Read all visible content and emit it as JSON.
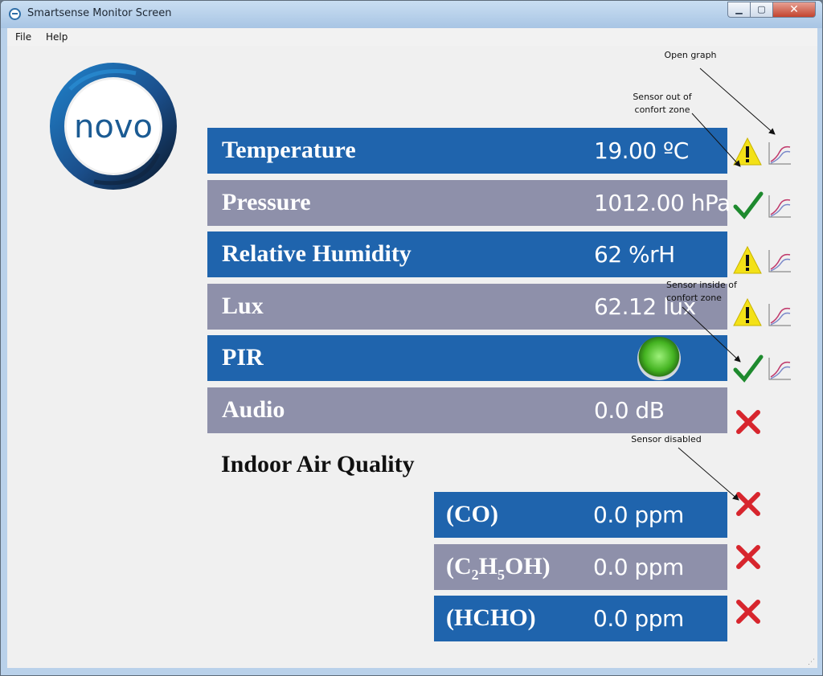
{
  "window": {
    "title": "Smartsense Monitor Screen"
  },
  "menu": {
    "file": "File",
    "help": "Help"
  },
  "logo": {
    "text": "novo"
  },
  "sensors": [
    {
      "label": "Temperature",
      "value": "19.00 ºC",
      "status": "warning"
    },
    {
      "label": "Pressure",
      "value": "1012.00 hPa",
      "status": "ok"
    },
    {
      "label": "Relative Humidity",
      "value": "62 %rH",
      "status": "warning"
    },
    {
      "label": "Lux",
      "value": "62.12 lux",
      "status": "warning"
    },
    {
      "label": "PIR",
      "value": "",
      "status": "ok"
    },
    {
      "label": "Audio",
      "value": "0.0 dB",
      "status": "disabled"
    }
  ],
  "air_quality": {
    "title": "Indoor Air Quality",
    "rows": [
      {
        "label": "(CO)",
        "value": "0.0 ppm",
        "status": "disabled"
      },
      {
        "label": "(C2H5OH)",
        "value": "0.0 ppm",
        "status": "disabled"
      },
      {
        "label": "(HCHO)",
        "value": "0.0 ppm",
        "status": "disabled"
      }
    ]
  },
  "annotations": {
    "open_graph": "Open graph",
    "out_of_zone_line1": "Sensor out of",
    "out_of_zone_line2": "confort zone",
    "inside_zone_line1": "Sensor inside of",
    "inside_zone_line2": "confort zone",
    "disabled": "Sensor disabled"
  },
  "colors": {
    "row_blue": "#1f64ad",
    "row_gray": "#8e90aa",
    "warning": "#f3e117",
    "ok": "#1e8a2e",
    "disabled": "#d7252d"
  }
}
